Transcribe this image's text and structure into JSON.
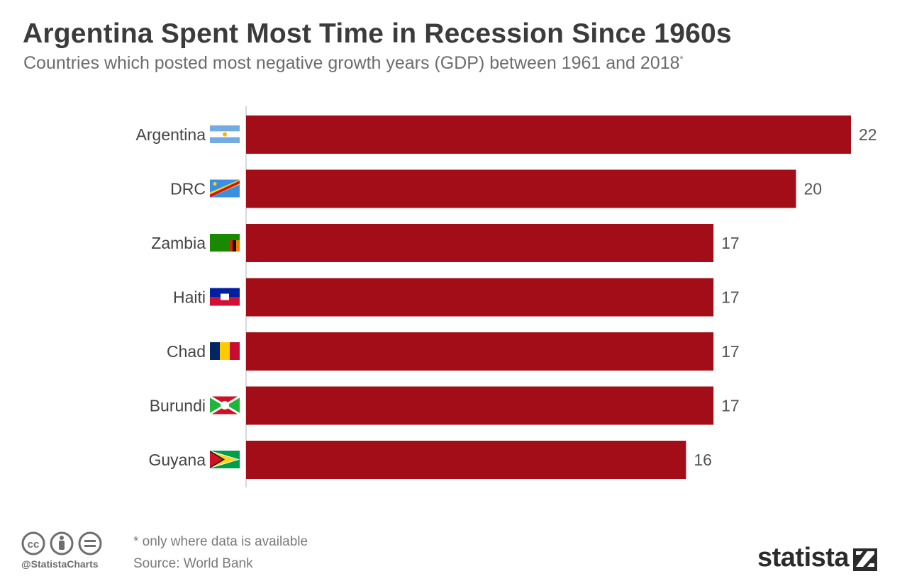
{
  "header": {
    "title": "Argentina Spent Most Time in Recession Since 1960s",
    "subtitle": "Countries which posted most negative growth years (GDP) between 1961 and 2018",
    "subtitle_mark": "*"
  },
  "chart_data": {
    "type": "bar",
    "orientation": "horizontal",
    "categories": [
      "Argentina",
      "DRC",
      "Zambia",
      "Haiti",
      "Chad",
      "Burundi",
      "Guyana"
    ],
    "values": [
      22,
      20,
      17,
      17,
      17,
      17,
      16
    ],
    "flag_icons": [
      "argentina-flag-icon",
      "drc-flag-icon",
      "zambia-flag-icon",
      "haiti-flag-icon",
      "chad-flag-icon",
      "burundi-flag-icon",
      "guyana-flag-icon"
    ],
    "bar_color": "#a30d17",
    "xlim": [
      0,
      22
    ],
    "grid": false,
    "data_labels": true
  },
  "footer": {
    "footnote": "* only where data is available",
    "source": "Source: World Bank",
    "handle": "@StatistaCharts",
    "brand": "statista",
    "license_icons": [
      "cc-icon",
      "by-icon",
      "nd-icon"
    ]
  }
}
